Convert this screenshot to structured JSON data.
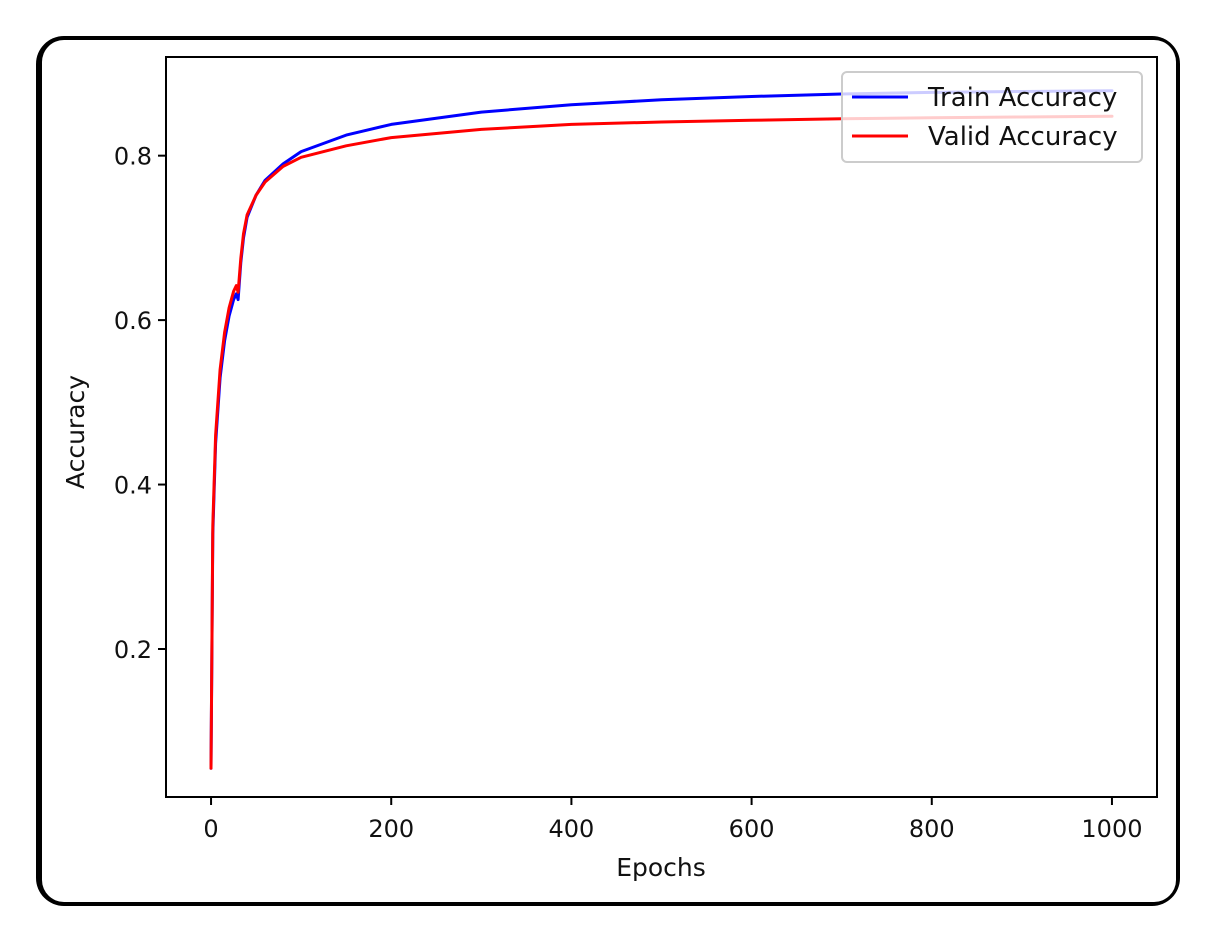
{
  "chart_data": {
    "type": "line",
    "title": "",
    "xlabel": "Epochs",
    "ylabel": "Accuracy",
    "xlim": [
      -50,
      1050
    ],
    "ylim": [
      0.02,
      0.92
    ],
    "x_ticks": [
      0,
      200,
      400,
      600,
      800,
      1000
    ],
    "x_tick_labels": [
      "0",
      "200",
      "400",
      "600",
      "800",
      "1000"
    ],
    "y_ticks": [
      0.2,
      0.4,
      0.6,
      0.8
    ],
    "y_tick_labels": [
      "0.2",
      "0.4",
      "0.6",
      "0.8"
    ],
    "grid": false,
    "legend_position": "top-right",
    "series": [
      {
        "name": "Train Accuracy",
        "color": "#0000ff",
        "x": [
          0,
          2,
          5,
          10,
          15,
          20,
          25,
          28,
          30,
          33,
          36,
          40,
          50,
          60,
          80,
          100,
          150,
          200,
          300,
          400,
          500,
          600,
          700,
          800,
          900,
          1000
        ],
        "y": [
          0.055,
          0.34,
          0.45,
          0.53,
          0.575,
          0.605,
          0.625,
          0.632,
          0.625,
          0.67,
          0.7,
          0.725,
          0.752,
          0.77,
          0.79,
          0.805,
          0.825,
          0.838,
          0.853,
          0.862,
          0.868,
          0.872,
          0.875,
          0.877,
          0.878,
          0.879
        ]
      },
      {
        "name": "Valid Accuracy",
        "color": "#ff0000",
        "x": [
          0,
          2,
          5,
          10,
          15,
          20,
          25,
          28,
          30,
          33,
          36,
          40,
          50,
          60,
          80,
          100,
          150,
          200,
          300,
          400,
          500,
          600,
          700,
          800,
          900,
          1000
        ],
        "y": [
          0.055,
          0.35,
          0.46,
          0.54,
          0.585,
          0.615,
          0.635,
          0.642,
          0.634,
          0.675,
          0.705,
          0.728,
          0.752,
          0.768,
          0.787,
          0.798,
          0.812,
          0.822,
          0.832,
          0.838,
          0.841,
          0.843,
          0.845,
          0.846,
          0.847,
          0.848
        ]
      }
    ]
  }
}
